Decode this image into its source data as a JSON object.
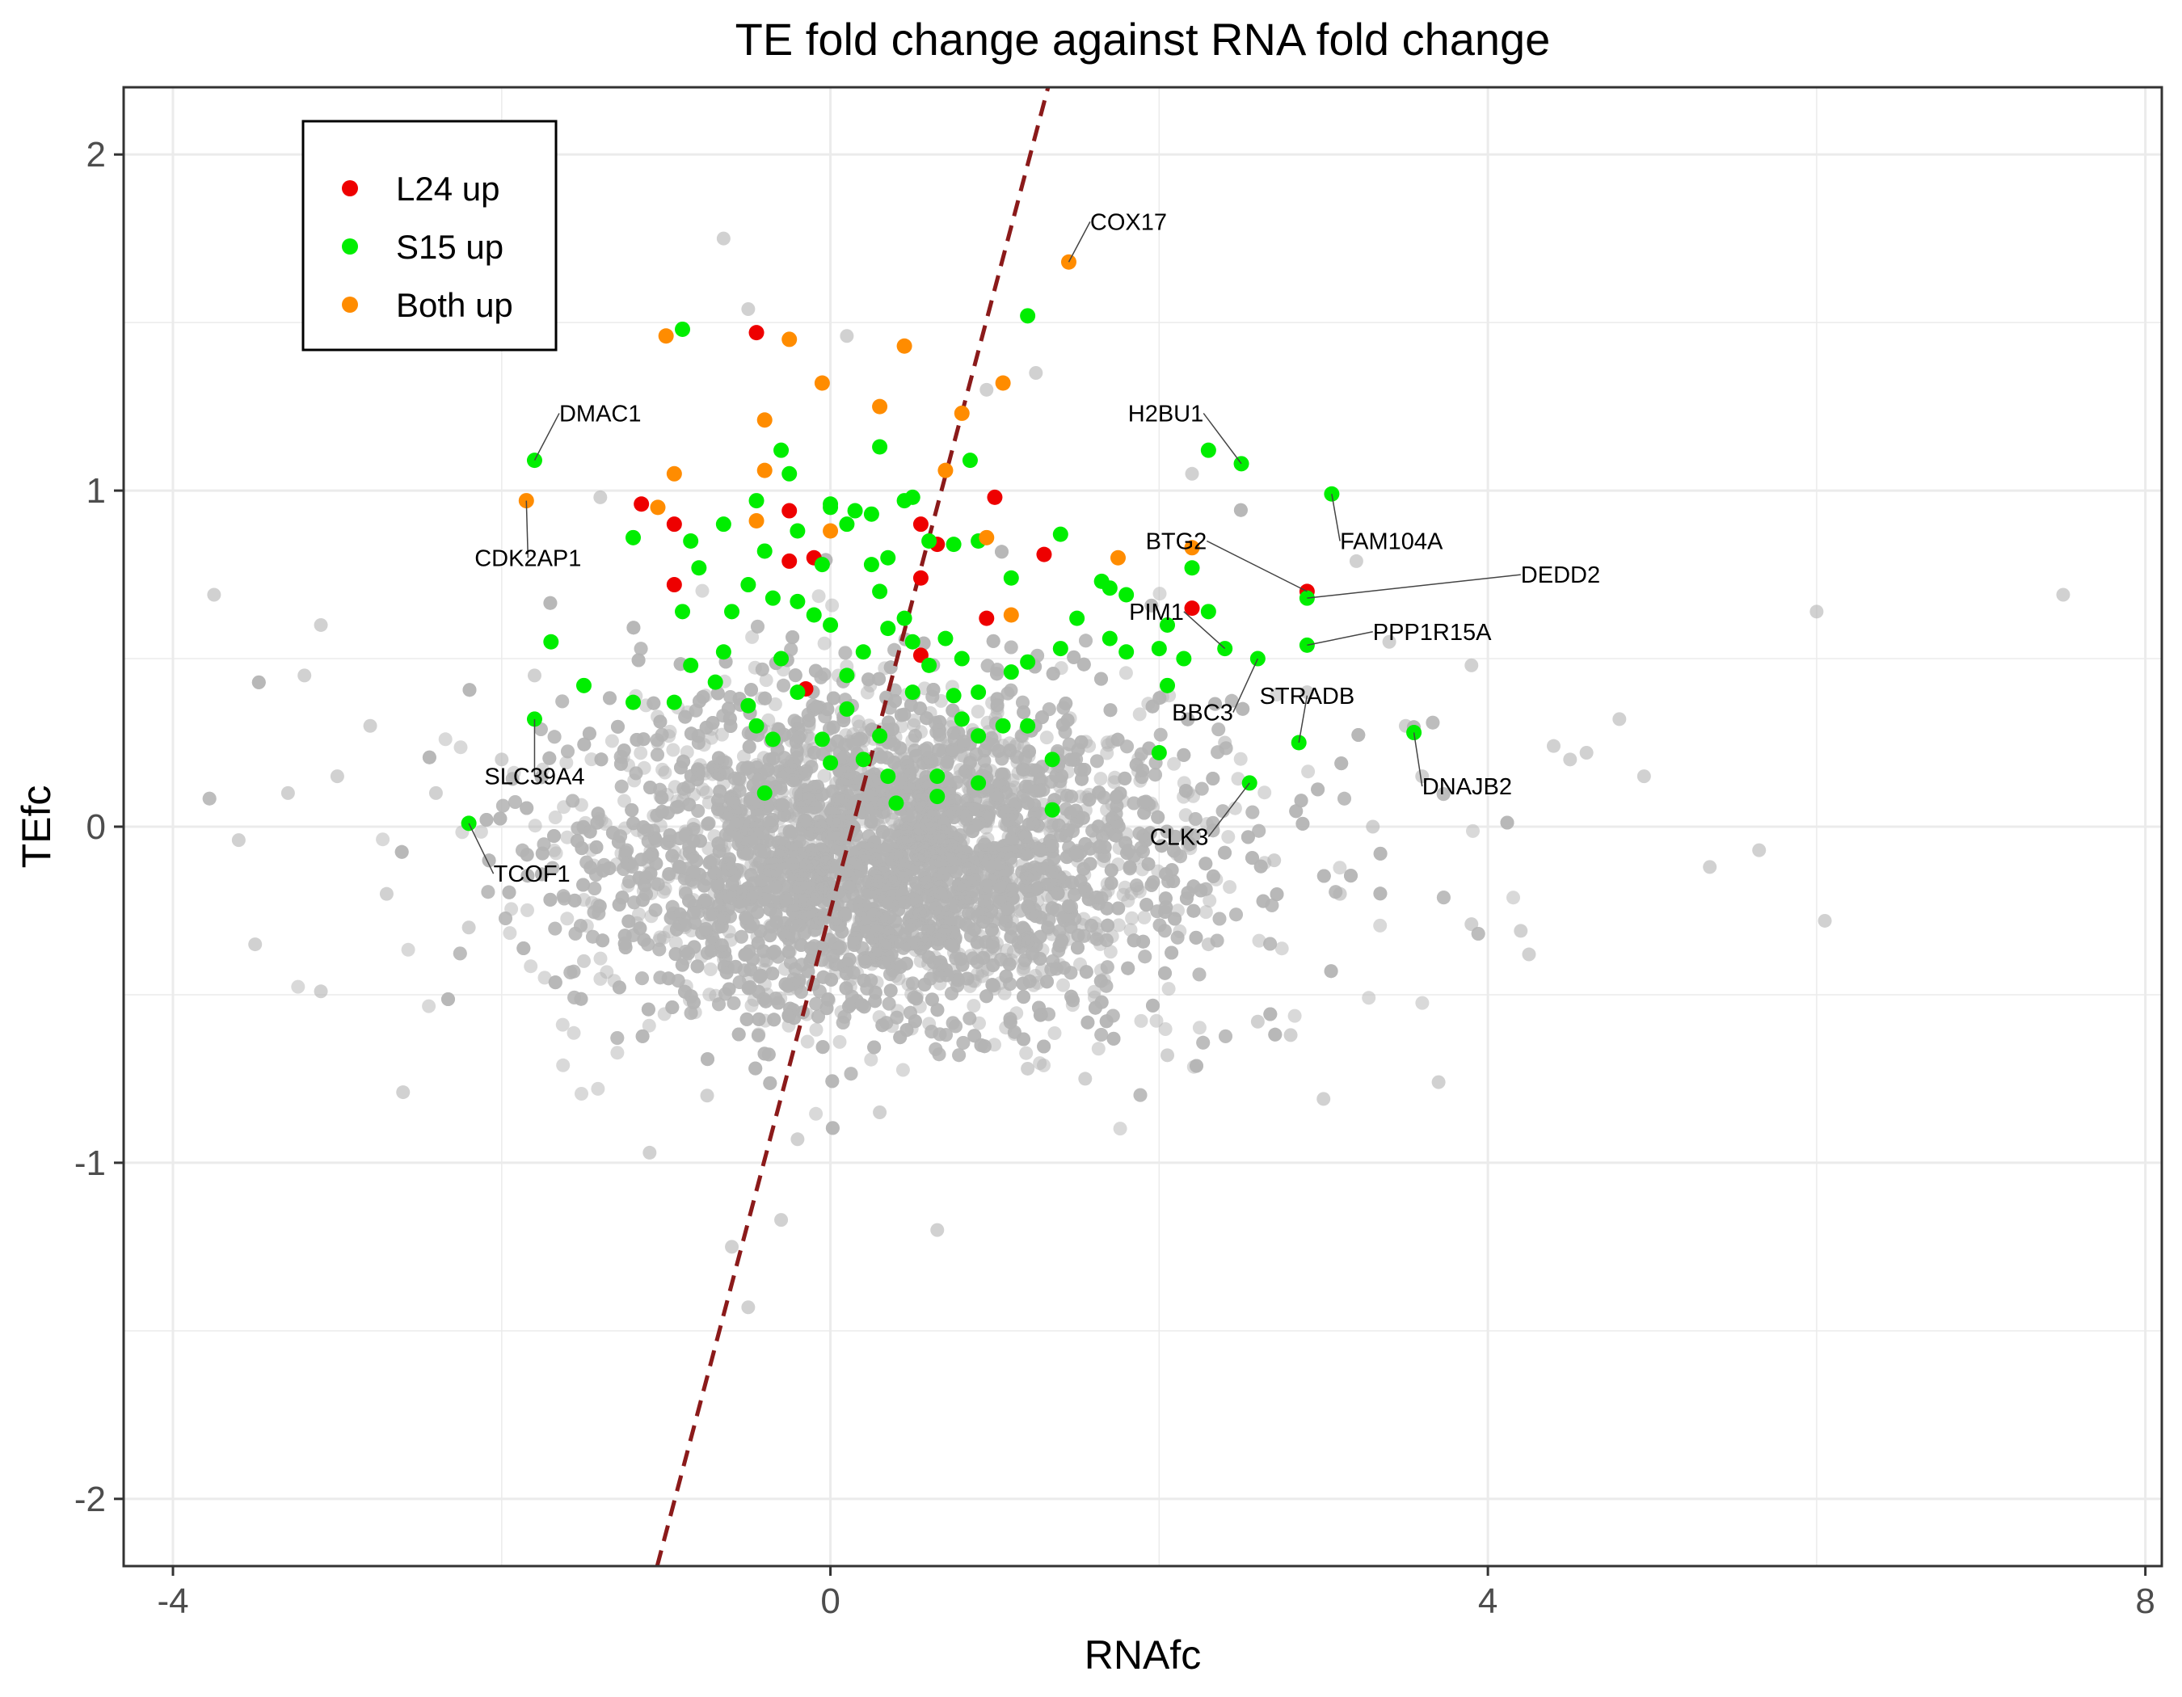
{
  "chart_data": {
    "type": "scatter",
    "title": "TE fold change against RNA fold change",
    "xlabel": "RNAfc",
    "ylabel": "TEfc",
    "xlim": [
      -4.3,
      8.1
    ],
    "ylim": [
      -2.2,
      2.2
    ],
    "xticks": [
      -4,
      0,
      4,
      8
    ],
    "yticks": [
      -2,
      -1,
      0,
      1,
      2
    ],
    "grid": true,
    "legend_position": "top-left",
    "reference_line": {
      "style": "dashed",
      "color": "#8b1a1a",
      "slope": 1.85,
      "intercept": -0.25
    },
    "background_points": {
      "color": "#b3b3b3",
      "description": "about 8000 unflagged genes, dense cloud centered near (0.3, -0.1)",
      "points": [
        [
          7.5,
          0.69
        ],
        [
          6.0,
          0.64
        ],
        [
          6.05,
          -0.28
        ],
        [
          5.65,
          -0.07
        ],
        [
          5.35,
          -0.12
        ],
        [
          4.95,
          0.15
        ],
        [
          4.8,
          0.32
        ],
        [
          4.25,
          -0.38
        ],
        [
          4.2,
          -0.31
        ],
        [
          3.9,
          -0.29
        ],
        [
          3.7,
          -0.76
        ],
        [
          3.2,
          0.79
        ],
        [
          3.0,
          -0.81
        ],
        [
          2.8,
          -0.62
        ],
        [
          2.6,
          -0.58
        ],
        [
          2.05,
          -0.68
        ],
        [
          1.55,
          -0.75
        ],
        [
          1.2,
          -0.72
        ],
        [
          0.65,
          -1.2
        ],
        [
          0.3,
          -0.85
        ],
        [
          -0.2,
          -0.93
        ],
        [
          -0.5,
          -1.43
        ],
        [
          -0.6,
          -1.25
        ],
        [
          -0.3,
          -1.17
        ],
        [
          -0.75,
          -0.8
        ],
        [
          -1.1,
          -0.97
        ],
        [
          -2.6,
          -0.79
        ],
        [
          -3.1,
          -0.49
        ],
        [
          -3.5,
          -0.35
        ],
        [
          -3.6,
          -0.04
        ],
        [
          -3.75,
          0.69
        ],
        [
          -3.1,
          0.6
        ],
        [
          -0.65,
          1.75
        ],
        [
          -0.5,
          1.54
        ],
        [
          0.1,
          1.46
        ],
        [
          0.95,
          1.3
        ],
        [
          1.25,
          1.35
        ],
        [
          2.2,
          1.05
        ],
        [
          -1.4,
          0.98
        ],
        [
          -2.0,
          0.2
        ],
        [
          -2.4,
          0.1
        ],
        [
          -2.2,
          -0.3
        ],
        [
          -1.8,
          0.45
        ],
        [
          -1.5,
          -0.4
        ],
        [
          3.5,
          0.3
        ],
        [
          3.6,
          0.15
        ],
        [
          3.3,
          0.0
        ],
        [
          3.1,
          -0.2
        ],
        [
          2.9,
          0.4
        ],
        [
          2.7,
          -0.1
        ],
        [
          2.4,
          0.25
        ],
        [
          2.3,
          -0.35
        ],
        [
          -2.8,
          0.3
        ],
        [
          -2.7,
          -0.2
        ],
        [
          -3.0,
          0.15
        ],
        [
          -3.3,
          0.1
        ],
        [
          4.5,
          0.2
        ],
        [
          4.4,
          0.24
        ],
        [
          4.6,
          0.22
        ],
        [
          3.4,
          0.55
        ],
        [
          -3.2,
          0.45
        ],
        [
          3.9,
          0.48
        ]
      ]
    },
    "series": [
      {
        "name": "L24 up",
        "color": "#ee0000",
        "points": [
          [
            -0.45,
            1.47
          ],
          [
            -1.15,
            0.96
          ],
          [
            -0.95,
            0.9
          ],
          [
            -0.95,
            0.72
          ],
          [
            -0.25,
            0.94
          ],
          [
            -0.25,
            0.79
          ],
          [
            -0.1,
            0.8
          ],
          [
            0.55,
            0.9
          ],
          [
            0.65,
            0.84
          ],
          [
            0.55,
            0.74
          ],
          [
            0.95,
            0.62
          ],
          [
            1.0,
            0.98
          ],
          [
            1.3,
            0.81
          ],
          [
            0.55,
            0.51
          ],
          [
            -0.15,
            0.41
          ],
          [
            2.2,
            0.65
          ],
          [
            2.9,
            0.7
          ]
        ]
      },
      {
        "name": "S15 up",
        "color": "#00ee00",
        "points": [
          [
            -0.9,
            1.48
          ],
          [
            -0.3,
            1.12
          ],
          [
            -0.25,
            1.05
          ],
          [
            0.3,
            1.13
          ],
          [
            0.85,
            1.09
          ],
          [
            1.2,
            1.52
          ],
          [
            0.45,
            0.97
          ],
          [
            0.5,
            0.98
          ],
          [
            -0.45,
            0.97
          ],
          [
            -0.2,
            0.88
          ],
          [
            0.0,
            0.96
          ],
          [
            0.1,
            0.9
          ],
          [
            0.15,
            0.94
          ],
          [
            0.25,
            0.93
          ],
          [
            -0.65,
            0.9
          ],
          [
            -0.85,
            0.85
          ],
          [
            -1.2,
            0.86
          ],
          [
            -0.8,
            0.77
          ],
          [
            -0.4,
            0.82
          ],
          [
            -0.05,
            0.78
          ],
          [
            0.25,
            0.78
          ],
          [
            0.35,
            0.8
          ],
          [
            0.6,
            0.85
          ],
          [
            0.75,
            0.84
          ],
          [
            0.9,
            0.85
          ],
          [
            1.1,
            0.74
          ],
          [
            1.4,
            0.87
          ],
          [
            1.65,
            0.73
          ],
          [
            1.7,
            0.71
          ],
          [
            1.8,
            0.69
          ],
          [
            2.05,
            0.6
          ],
          [
            2.2,
            0.77
          ],
          [
            2.3,
            0.64
          ],
          [
            2.0,
            0.53
          ],
          [
            1.8,
            0.52
          ],
          [
            1.7,
            0.56
          ],
          [
            1.5,
            0.62
          ],
          [
            1.4,
            0.53
          ],
          [
            1.2,
            0.49
          ],
          [
            1.1,
            0.46
          ],
          [
            1.05,
            0.3
          ],
          [
            0.9,
            0.4
          ],
          [
            0.8,
            0.5
          ],
          [
            0.7,
            0.56
          ],
          [
            0.6,
            0.48
          ],
          [
            0.5,
            0.55
          ],
          [
            0.45,
            0.62
          ],
          [
            0.35,
            0.59
          ],
          [
            0.3,
            0.7
          ],
          [
            0.2,
            0.52
          ],
          [
            0.1,
            0.45
          ],
          [
            0.0,
            0.6
          ],
          [
            -0.1,
            0.63
          ],
          [
            -0.2,
            0.67
          ],
          [
            -0.35,
            0.68
          ],
          [
            -0.5,
            0.72
          ],
          [
            -0.6,
            0.64
          ],
          [
            -0.65,
            0.52
          ],
          [
            -0.7,
            0.43
          ],
          [
            -0.9,
            0.64
          ],
          [
            -0.85,
            0.48
          ],
          [
            -0.95,
            0.37
          ],
          [
            -1.2,
            0.37
          ],
          [
            -0.5,
            0.36
          ],
          [
            -0.45,
            0.3
          ],
          [
            -0.35,
            0.26
          ],
          [
            -0.2,
            0.4
          ],
          [
            0.1,
            0.35
          ],
          [
            0.3,
            0.27
          ],
          [
            0.35,
            0.15
          ],
          [
            0.4,
            0.07
          ],
          [
            0.2,
            0.2
          ],
          [
            0.0,
            0.19
          ],
          [
            -0.05,
            0.26
          ],
          [
            0.65,
            0.15
          ],
          [
            0.65,
            0.09
          ],
          [
            0.9,
            0.13
          ],
          [
            0.9,
            0.27
          ],
          [
            0.8,
            0.32
          ],
          [
            0.75,
            0.39
          ],
          [
            1.35,
            0.05
          ],
          [
            1.35,
            0.2
          ],
          [
            2.0,
            0.22
          ],
          [
            2.05,
            0.42
          ],
          [
            2.15,
            0.5
          ],
          [
            2.6,
            0.5
          ],
          [
            2.55,
            0.13
          ],
          [
            2.85,
            0.25
          ],
          [
            3.05,
            0.99
          ],
          [
            2.5,
            1.08
          ],
          [
            2.3,
            1.12
          ],
          [
            2.9,
            0.54
          ],
          [
            3.55,
            0.28
          ],
          [
            -1.8,
            1.09
          ],
          [
            -1.7,
            0.55
          ],
          [
            -1.5,
            0.42
          ],
          [
            -1.8,
            0.32
          ],
          [
            -2.2,
            0.01
          ],
          [
            -0.4,
            0.1
          ],
          [
            2.4,
            0.53
          ],
          [
            2.9,
            0.68
          ],
          [
            1.2,
            0.3
          ],
          [
            0.5,
            0.4
          ],
          [
            -0.3,
            0.5
          ],
          [
            0.0,
            0.95
          ]
        ]
      },
      {
        "name": "Both up",
        "color": "#ff8c00",
        "points": [
          [
            1.45,
            1.68
          ],
          [
            -1.0,
            1.46
          ],
          [
            -0.25,
            1.45
          ],
          [
            -0.05,
            1.32
          ],
          [
            0.45,
            1.43
          ],
          [
            1.05,
            1.32
          ],
          [
            0.3,
            1.25
          ],
          [
            -0.4,
            1.21
          ],
          [
            0.8,
            1.23
          ],
          [
            -0.4,
            1.06
          ],
          [
            0.7,
            1.06
          ],
          [
            -0.95,
            1.05
          ],
          [
            -1.85,
            0.97
          ],
          [
            -1.05,
            0.95
          ],
          [
            -0.45,
            0.91
          ],
          [
            0.0,
            0.88
          ],
          [
            0.95,
            0.86
          ],
          [
            1.75,
            0.8
          ],
          [
            2.2,
            0.83
          ],
          [
            1.1,
            0.63
          ]
        ]
      }
    ],
    "annotations": [
      {
        "label": "COX17",
        "point": [
          1.45,
          1.68
        ],
        "text_pos": [
          1.58,
          1.8
        ]
      },
      {
        "label": "DMAC1",
        "point": [
          -1.8,
          1.09
        ],
        "text_pos": [
          -1.65,
          1.23
        ]
      },
      {
        "label": "H2BU1",
        "point": [
          2.5,
          1.08
        ],
        "text_pos": [
          2.27,
          1.23
        ]
      },
      {
        "label": "CDK2AP1",
        "point": [
          -1.85,
          0.97
        ],
        "text_pos": [
          -1.84,
          0.8
        ]
      },
      {
        "label": "FAM104A",
        "point": [
          3.05,
          0.99
        ],
        "text_pos": [
          3.1,
          0.85
        ]
      },
      {
        "label": "BTG2",
        "point": [
          2.9,
          0.7
        ],
        "text_pos": [
          2.29,
          0.85
        ]
      },
      {
        "label": "DEDD2",
        "point": [
          2.9,
          0.68
        ],
        "text_pos": [
          4.2,
          0.75
        ]
      },
      {
        "label": "PIM1",
        "point": [
          2.4,
          0.53
        ],
        "text_pos": [
          2.15,
          0.64
        ]
      },
      {
        "label": "PPP1R15A",
        "point": [
          2.9,
          0.54
        ],
        "text_pos": [
          3.3,
          0.58
        ]
      },
      {
        "label": "BBC3",
        "point": [
          2.6,
          0.5
        ],
        "text_pos": [
          2.45,
          0.34
        ]
      },
      {
        "label": "STRADB",
        "point": [
          2.85,
          0.25
        ],
        "text_pos": [
          2.9,
          0.39
        ]
      },
      {
        "label": "SLC39A4",
        "point": [
          -1.8,
          0.32
        ],
        "text_pos": [
          -1.8,
          0.15
        ]
      },
      {
        "label": "DNAJB2",
        "point": [
          3.55,
          0.28
        ],
        "text_pos": [
          3.6,
          0.12
        ]
      },
      {
        "label": "CLK3",
        "point": [
          2.55,
          0.13
        ],
        "text_pos": [
          2.3,
          -0.03
        ]
      },
      {
        "label": "TCOF1",
        "point": [
          -2.2,
          0.01
        ],
        "text_pos": [
          -2.05,
          -0.14
        ]
      }
    ]
  }
}
